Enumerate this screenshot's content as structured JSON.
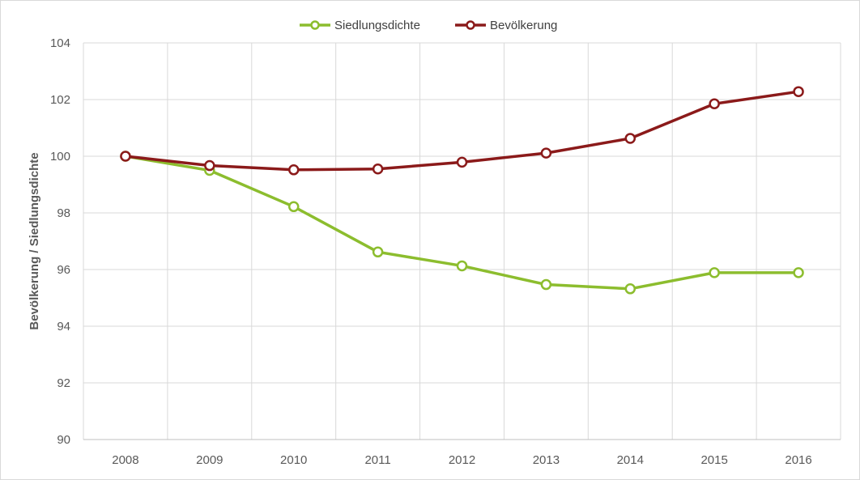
{
  "chart_data": {
    "type": "line",
    "categories": [
      "2008",
      "2009",
      "2010",
      "2011",
      "2012",
      "2013",
      "2014",
      "2015",
      "2016"
    ],
    "series": [
      {
        "name": "Siedlungsdichte",
        "color": "#8cbd2e",
        "values": [
          100.0,
          99.5,
          98.22,
          96.62,
          96.13,
          95.47,
          95.32,
          95.89,
          95.89
        ]
      },
      {
        "name": "Bevölkerung",
        "color": "#8b1a1a",
        "values": [
          100.0,
          99.67,
          99.52,
          99.55,
          99.79,
          100.11,
          100.63,
          101.85,
          102.28
        ]
      }
    ],
    "ylabel": "Bevölkerung / Siedlungsdichte",
    "ylim": [
      90,
      104
    ],
    "yticks": [
      90,
      92,
      94,
      96,
      98,
      100,
      102,
      104
    ],
    "grid": true,
    "legend_position": "top"
  }
}
